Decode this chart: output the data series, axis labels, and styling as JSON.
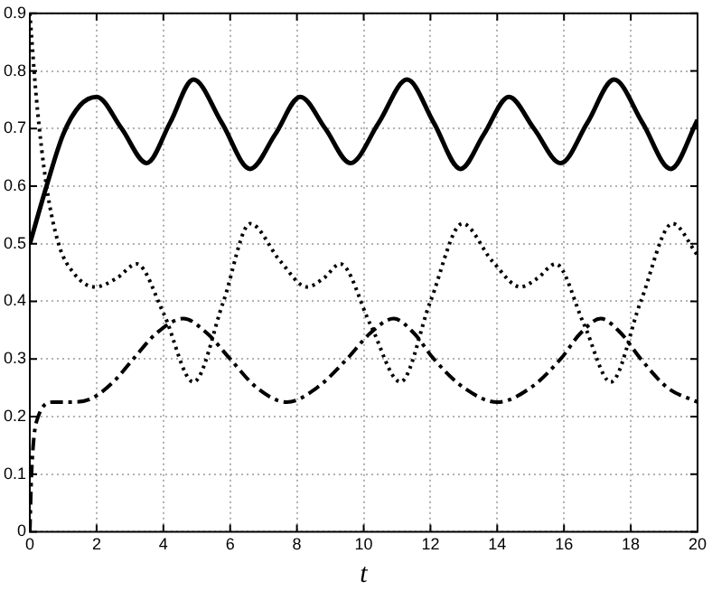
{
  "chart_data": {
    "type": "line",
    "xlabel": "t",
    "xlim": [
      0,
      20
    ],
    "xticks": [
      0,
      2,
      4,
      6,
      8,
      10,
      12,
      14,
      16,
      18,
      20
    ],
    "ylim": [
      0,
      0.9
    ],
    "yticks": [
      0,
      0.1,
      0.2,
      0.3,
      0.4,
      0.5,
      0.6,
      0.7,
      0.8,
      0.9
    ],
    "grid": true,
    "legend": false,
    "marker": "none",
    "series": [
      {
        "color": "#000000",
        "line_style": "solid",
        "x": [
          0,
          0.5,
          1,
          1.5,
          2,
          2.75,
          3.5,
          4.2,
          4.9,
          5.75,
          6.6,
          7.35,
          8.1,
          8.85,
          9.6,
          10.45,
          11.3,
          12.1,
          12.9,
          13.6,
          14.35,
          15.1,
          15.9,
          16.7,
          17.5,
          18.35,
          19.2,
          20
        ],
        "values": [
          0.5,
          0.6,
          0.69,
          0.74,
          0.755,
          0.7,
          0.64,
          0.71,
          0.785,
          0.71,
          0.63,
          0.69,
          0.755,
          0.7,
          0.64,
          0.71,
          0.785,
          0.71,
          0.63,
          0.69,
          0.755,
          0.7,
          0.64,
          0.71,
          0.785,
          0.71,
          0.63,
          0.715
        ]
      },
      {
        "color": "#000000",
        "line_style": "dotted",
        "x": [
          0,
          0.2,
          0.5,
          0.86,
          1.3,
          1.94,
          2.6,
          3.2,
          4,
          4.9,
          5.8,
          6.6,
          7.5,
          8.3,
          8.8,
          9.3,
          10.2,
          11.1,
          12,
          12.96,
          13.85,
          14.7,
          15.2,
          15.75,
          16.6,
          17.4,
          18.3,
          19.25,
          20
        ],
        "values": [
          0.9,
          0.75,
          0.6,
          0.5,
          0.45,
          0.425,
          0.44,
          0.465,
          0.38,
          0.26,
          0.4,
          0.535,
          0.47,
          0.425,
          0.44,
          0.465,
          0.36,
          0.26,
          0.4,
          0.535,
          0.47,
          0.425,
          0.44,
          0.465,
          0.36,
          0.26,
          0.4,
          0.535,
          0.48
        ]
      },
      {
        "color": "#000000",
        "line_style": "dashed",
        "x": [
          0,
          0.05,
          0.25,
          0.7,
          1.2,
          1.8,
          2.5,
          3.1,
          3.8,
          4.6,
          5.3,
          6,
          6.8,
          7.7,
          8.6,
          9.5,
          10.2,
          10.9,
          11.5,
          12.1,
          13,
          14,
          15,
          15.9,
          16.5,
          17.1,
          17.7,
          18.3,
          19.1,
          20
        ],
        "values": [
          0,
          0.1,
          0.2,
          0.225,
          0.225,
          0.23,
          0.26,
          0.3,
          0.345,
          0.37,
          0.345,
          0.3,
          0.25,
          0.225,
          0.25,
          0.3,
          0.345,
          0.37,
          0.345,
          0.3,
          0.25,
          0.225,
          0.25,
          0.3,
          0.345,
          0.37,
          0.345,
          0.3,
          0.25,
          0.225
        ]
      }
    ]
  }
}
